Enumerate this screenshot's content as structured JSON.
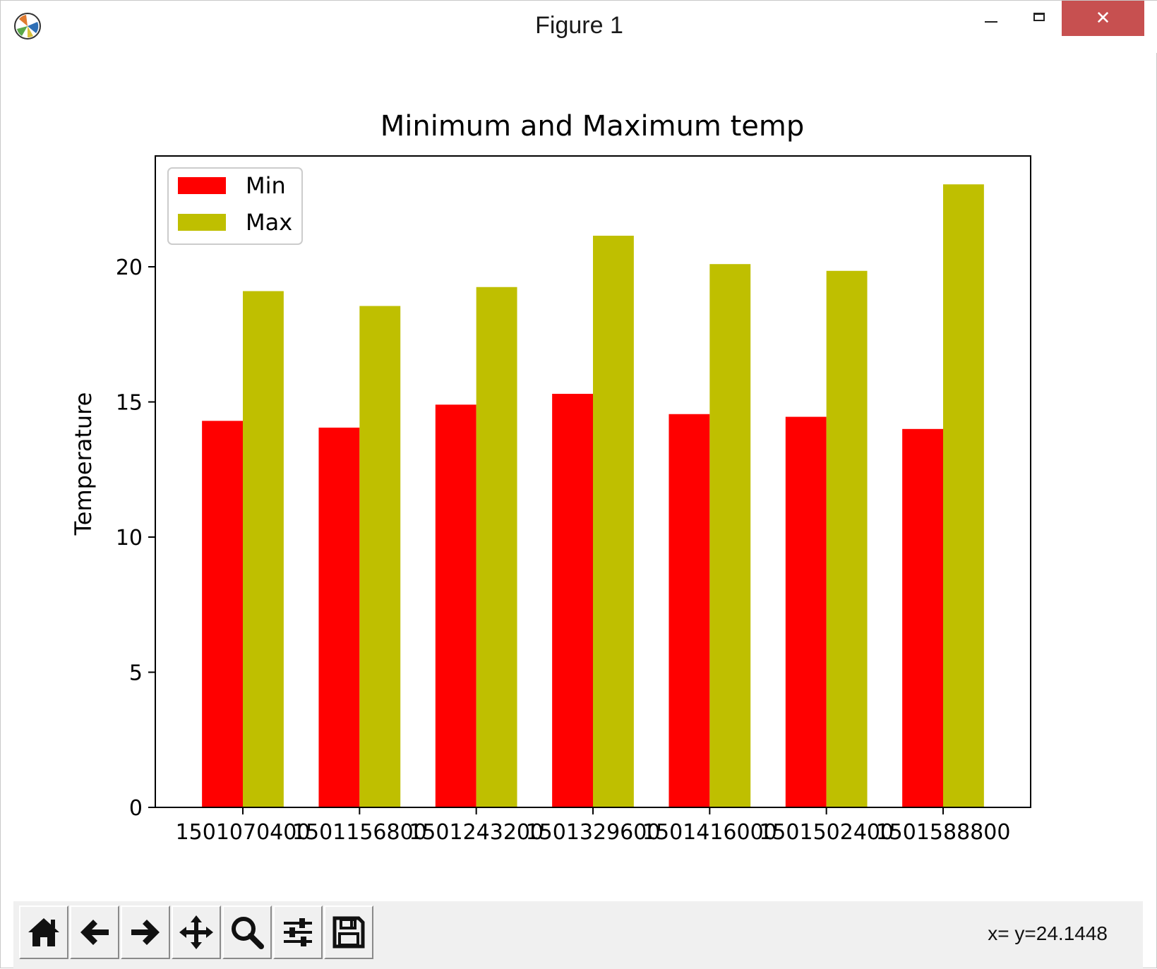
{
  "window": {
    "title": "Figure 1"
  },
  "toolbar": {
    "buttons": [
      {
        "name": "home-icon"
      },
      {
        "name": "back-arrow-icon"
      },
      {
        "name": "forward-arrow-icon"
      },
      {
        "name": "pan-move-icon"
      },
      {
        "name": "zoom-magnifier-icon"
      },
      {
        "name": "subplots-sliders-icon"
      },
      {
        "name": "save-floppy-icon"
      }
    ],
    "coords_text": "x= y=24.1448"
  },
  "chart_data": {
    "type": "bar",
    "title": "Minimum and Maximum temp",
    "xlabel": "",
    "ylabel": "Temperature",
    "categories": [
      "1501070400",
      "1501156800",
      "1501243200",
      "1501329600",
      "1501416000",
      "1501502400",
      "1501588800"
    ],
    "series": [
      {
        "name": "Min",
        "color": "#ff0000",
        "values": [
          14.3,
          14.05,
          14.9,
          15.3,
          14.55,
          14.45,
          14.0
        ]
      },
      {
        "name": "Max",
        "color": "#bfbf00",
        "values": [
          19.1,
          18.55,
          19.25,
          21.15,
          20.1,
          19.85,
          23.05
        ]
      }
    ],
    "ylim": [
      0,
      24.1
    ],
    "yticks": [
      "0",
      "5",
      "10",
      "15",
      "20"
    ],
    "grid": false,
    "legend_position": "upper left"
  }
}
